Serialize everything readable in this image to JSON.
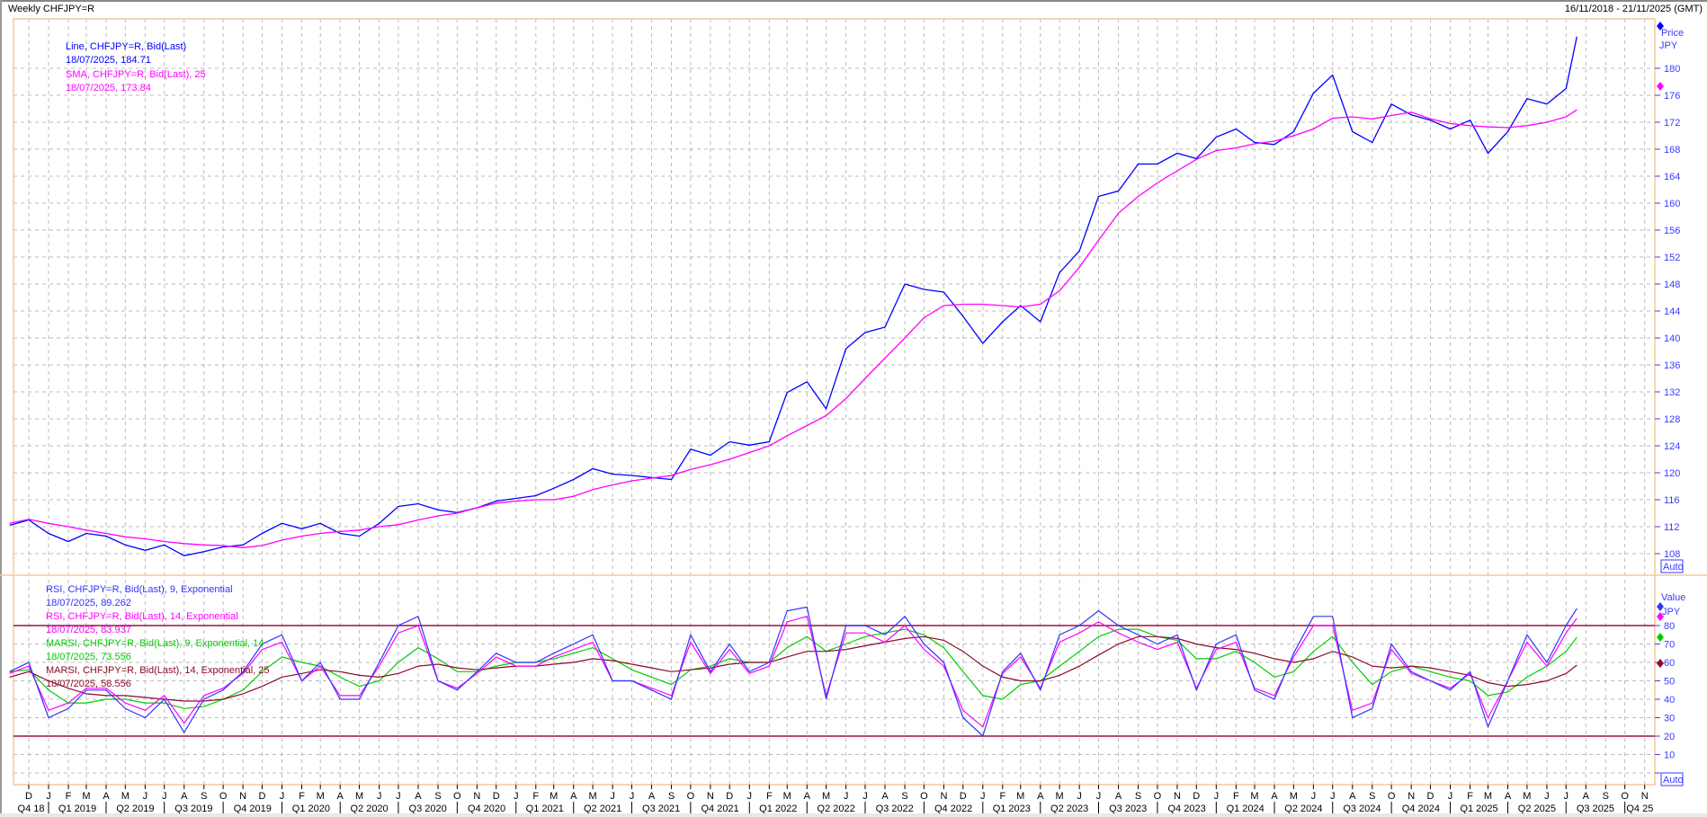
{
  "header": {
    "title": "Weekly CHFJPY=R",
    "date_range": "16/11/2018 - 21/11/2025 (GMT)"
  },
  "price_panel": {
    "legend": [
      {
        "label": "Line, CHFJPY=R, Bid(Last)",
        "value": "18/07/2025, 184.71",
        "color": "#0000ff"
      },
      {
        "label": "SMA, CHFJPY=R, Bid(Last),  25",
        "value": "18/07/2025, 173.84",
        "color": "#ff00ff"
      }
    ],
    "axis_title": "Price",
    "axis_unit": "JPY",
    "auto_label": "Auto"
  },
  "rsi_panel": {
    "legend": [
      {
        "label": "RSI, CHFJPY=R, Bid(Last),  9, Exponential",
        "value": "18/07/2025, 89.262",
        "color": "#3333ff"
      },
      {
        "label": "RSI, CHFJPY=R, Bid(Last),  14, Exponential",
        "value": "18/07/2025, 83.937",
        "color": "#ff00ff"
      },
      {
        "label": "MARSI, CHFJPY=R, Bid(Last),  9, Exponential, 14",
        "value": "18/07/2025, 73.556",
        "color": "#00cc00"
      },
      {
        "label": "MARSI, CHFJPY=R, Bid(Last),  14, Exponential, 25",
        "value": "18/07/2025, 58.556",
        "color": "#8b0a2a"
      }
    ],
    "axis_title": "Value",
    "axis_unit": "JPY",
    "auto_label": "Auto",
    "levels": [
      80,
      20
    ],
    "level_color": "#9b1040"
  },
  "x_axis": {
    "month_labels": [
      "D",
      "J",
      "F",
      "M",
      "A",
      "M",
      "J",
      "J",
      "A",
      "S",
      "O",
      "N",
      "D",
      "J",
      "F",
      "M",
      "A",
      "M",
      "J",
      "J",
      "A",
      "S",
      "O",
      "N",
      "D",
      "J",
      "F",
      "M",
      "A",
      "M",
      "J",
      "J",
      "A",
      "S",
      "O",
      "N",
      "D",
      "J",
      "F",
      "M",
      "A",
      "M",
      "J",
      "J",
      "A",
      "S",
      "O",
      "N",
      "D",
      "J",
      "F",
      "M",
      "A",
      "M",
      "J",
      "J",
      "A",
      "S",
      "O",
      "N",
      "D",
      "J",
      "F",
      "M",
      "A",
      "M",
      "J",
      "J",
      "A",
      "S",
      "O",
      "N",
      "D",
      "J",
      "F",
      "M",
      "A",
      "M",
      "J",
      "J",
      "A",
      "S",
      "O",
      "N"
    ],
    "quarter_labels": [
      "Q4 18",
      "Q1 2019",
      "Q2 2019",
      "Q3 2019",
      "Q4 2019",
      "Q1 2020",
      "Q2 2020",
      "Q3 2020",
      "Q4 2020",
      "Q1 2021",
      "Q2 2021",
      "Q3 2021",
      "Q4 2021",
      "Q1 2022",
      "Q2 2022",
      "Q3 2022",
      "Q4 2022",
      "Q1 2023",
      "Q2 2023",
      "Q3 2023",
      "Q4 2023",
      "Q1 2024",
      "Q2 2024",
      "Q3 2024",
      "Q4 2024",
      "Q1 2025",
      "Q2 2025",
      "Q3 2025",
      "Q4 25"
    ]
  },
  "chart_data": [
    {
      "type": "line",
      "title": "Weekly CHFJPY=R",
      "ylabel": "Price JPY",
      "ylim": [
        108,
        187
      ],
      "y_ticks": [
        108,
        112,
        116,
        120,
        124,
        128,
        132,
        136,
        140,
        144,
        148,
        152,
        156,
        160,
        164,
        168,
        172,
        176,
        180
      ],
      "xlim": [
        "2018-11-16",
        "2025-11-21"
      ],
      "grid": true,
      "legend_placement": "top-left",
      "x": [
        "2018-11-01",
        "2018-12-01",
        "2019-01-01",
        "2019-02-01",
        "2019-03-01",
        "2019-04-01",
        "2019-05-01",
        "2019-06-01",
        "2019-07-01",
        "2019-08-01",
        "2019-09-01",
        "2019-10-01",
        "2019-11-01",
        "2019-12-01",
        "2020-01-01",
        "2020-02-01",
        "2020-03-01",
        "2020-04-01",
        "2020-05-01",
        "2020-06-01",
        "2020-07-01",
        "2020-08-01",
        "2020-09-01",
        "2020-10-01",
        "2020-11-01",
        "2020-12-01",
        "2021-01-01",
        "2021-02-01",
        "2021-03-01",
        "2021-04-01",
        "2021-05-01",
        "2021-06-01",
        "2021-07-01",
        "2021-08-01",
        "2021-09-01",
        "2021-10-01",
        "2021-11-01",
        "2021-12-01",
        "2022-01-01",
        "2022-02-01",
        "2022-03-01",
        "2022-04-01",
        "2022-05-01",
        "2022-06-01",
        "2022-07-01",
        "2022-08-01",
        "2022-09-01",
        "2022-10-01",
        "2022-11-01",
        "2022-12-01",
        "2023-01-01",
        "2023-02-01",
        "2023-03-01",
        "2023-04-01",
        "2023-05-01",
        "2023-06-01",
        "2023-07-01",
        "2023-08-01",
        "2023-09-01",
        "2023-10-01",
        "2023-11-01",
        "2023-12-01",
        "2024-01-01",
        "2024-02-01",
        "2024-03-01",
        "2024-04-01",
        "2024-05-01",
        "2024-06-01",
        "2024-07-01",
        "2024-08-01",
        "2024-09-01",
        "2024-10-01",
        "2024-11-01",
        "2024-12-01",
        "2025-01-01",
        "2025-02-01",
        "2025-03-01",
        "2025-04-01",
        "2025-05-01",
        "2025-06-01",
        "2025-07-01",
        "2025-07-18"
      ],
      "series": [
        {
          "name": "Line, CHFJPY=R, Bid(Last)",
          "color": "#0000ff",
          "values": [
            112.2,
            113.0,
            111.0,
            109.8,
            111.0,
            110.6,
            109.3,
            108.5,
            109.3,
            107.7,
            108.3,
            109.0,
            109.3,
            111.0,
            112.5,
            111.7,
            112.5,
            111.0,
            110.6,
            112.5,
            115.0,
            115.4,
            114.5,
            114.1,
            114.8,
            115.8,
            116.2,
            116.6,
            117.7,
            119.0,
            120.6,
            119.8,
            119.6,
            119.3,
            119.0,
            123.5,
            122.6,
            124.6,
            124.1,
            124.6,
            131.9,
            133.5,
            129.5,
            138.4,
            140.8,
            141.6,
            148.0,
            147.2,
            146.8,
            143.2,
            139.2,
            142.4,
            144.8,
            142.4,
            149.7,
            152.9,
            161.0,
            161.8,
            165.8,
            165.8,
            167.4,
            166.6,
            169.8,
            171.0,
            169.0,
            168.7,
            170.6,
            176.3,
            179.0,
            170.6,
            169.0,
            174.7,
            173.1,
            172.3,
            171.0,
            172.3,
            167.4,
            170.6,
            175.5,
            174.7,
            177.0,
            184.71
          ]
        },
        {
          "name": "SMA, CHFJPY=R, Bid(Last),  25",
          "color": "#ff00ff",
          "values": [
            112.5,
            113.1,
            112.5,
            112.0,
            111.5,
            111.0,
            110.5,
            110.2,
            109.8,
            109.5,
            109.3,
            109.2,
            108.9,
            109.2,
            110.0,
            110.6,
            111.0,
            111.3,
            111.5,
            112.0,
            112.3,
            113.0,
            113.6,
            114.0,
            114.8,
            115.5,
            115.8,
            116.0,
            116.0,
            116.5,
            117.5,
            118.2,
            118.8,
            119.2,
            119.6,
            120.5,
            121.2,
            122.0,
            123.0,
            124.0,
            125.5,
            127.0,
            128.5,
            131.0,
            134.0,
            137.0,
            140.0,
            143.0,
            144.8,
            145.0,
            145.0,
            144.8,
            144.6,
            145.0,
            147.0,
            150.5,
            154.5,
            158.5,
            161.0,
            163.0,
            164.8,
            166.5,
            167.8,
            168.2,
            168.8,
            169.2,
            170.0,
            171.0,
            172.6,
            172.8,
            172.5,
            173.0,
            173.5,
            172.5,
            171.8,
            171.5,
            171.3,
            171.2,
            171.5,
            172.0,
            172.8,
            173.84
          ]
        }
      ]
    },
    {
      "type": "line",
      "ylabel": "Value JPY",
      "ylim": [
        0,
        90
      ],
      "y_ticks": [
        10,
        20,
        30,
        40,
        50,
        60,
        70,
        80
      ],
      "grid": true,
      "legend_placement": "top-left",
      "x_ref": "same as price chart",
      "series": [
        {
          "name": "RSI, CHFJPY=R, Bid(Last),  9, Exponential",
          "color": "#3333ff",
          "values": [
            55,
            60,
            30,
            35,
            45,
            45,
            35,
            30,
            40,
            22,
            40,
            45,
            55,
            70,
            75,
            50,
            60,
            40,
            40,
            60,
            80,
            85,
            50,
            45,
            55,
            65,
            60,
            60,
            65,
            70,
            75,
            50,
            50,
            45,
            40,
            75,
            55,
            70,
            55,
            60,
            88,
            90,
            40,
            80,
            80,
            75,
            85,
            70,
            60,
            30,
            20,
            55,
            65,
            45,
            75,
            80,
            88,
            80,
            75,
            70,
            75,
            45,
            70,
            75,
            45,
            40,
            65,
            85,
            85,
            30,
            35,
            70,
            55,
            50,
            45,
            55,
            25,
            50,
            75,
            60,
            80,
            89.262
          ]
        },
        {
          "name": "RSI, CHFJPY=R, Bid(Last),  14, Exponential",
          "color": "#ff00ff",
          "values": [
            54,
            58,
            34,
            38,
            46,
            46,
            38,
            34,
            42,
            27,
            42,
            46,
            54,
            67,
            71,
            50,
            58,
            42,
            42,
            58,
            76,
            80,
            50,
            46,
            54,
            63,
            58,
            58,
            63,
            67,
            71,
            50,
            50,
            46,
            42,
            71,
            54,
            67,
            54,
            58,
            82,
            85,
            42,
            76,
            76,
            71,
            80,
            67,
            58,
            34,
            25,
            54,
            63,
            46,
            71,
            76,
            82,
            76,
            71,
            67,
            71,
            46,
            67,
            71,
            46,
            42,
            63,
            80,
            80,
            34,
            38,
            67,
            54,
            50,
            46,
            54,
            30,
            50,
            71,
            58,
            76,
            83.937
          ]
        },
        {
          "name": "MARSI, CHFJPY=R, Bid(Last),  9, Exponential, 14",
          "color": "#00cc00",
          "values": [
            55,
            56,
            45,
            38,
            38,
            40,
            40,
            38,
            38,
            35,
            36,
            40,
            45,
            55,
            63,
            60,
            58,
            52,
            47,
            50,
            60,
            68,
            62,
            55,
            55,
            58,
            60,
            60,
            62,
            65,
            68,
            62,
            56,
            52,
            48,
            56,
            58,
            62,
            60,
            60,
            68,
            74,
            66,
            70,
            74,
            76,
            78,
            75,
            68,
            55,
            42,
            40,
            48,
            50,
            58,
            66,
            74,
            78,
            78,
            74,
            72,
            62,
            62,
            66,
            60,
            52,
            55,
            66,
            74,
            60,
            48,
            55,
            58,
            55,
            52,
            50,
            42,
            44,
            52,
            58,
            66,
            73.556
          ]
        },
        {
          "name": "MARSI, CHFJPY=R, Bid(Last),  14, Exponential, 25",
          "color": "#8b0a2a",
          "values": [
            52,
            55,
            50,
            46,
            43,
            42,
            42,
            41,
            40,
            39,
            39,
            40,
            43,
            47,
            52,
            54,
            56,
            55,
            53,
            52,
            54,
            58,
            59,
            57,
            56,
            57,
            58,
            58,
            59,
            60,
            62,
            61,
            59,
            57,
            55,
            56,
            57,
            59,
            60,
            60,
            63,
            66,
            66,
            67,
            69,
            71,
            73,
            74,
            72,
            66,
            58,
            52,
            50,
            50,
            53,
            58,
            64,
            70,
            74,
            74,
            73,
            70,
            68,
            67,
            65,
            62,
            60,
            62,
            66,
            63,
            58,
            57,
            58,
            57,
            55,
            53,
            49,
            47,
            48,
            50,
            54,
            58.556
          ]
        }
      ]
    }
  ]
}
